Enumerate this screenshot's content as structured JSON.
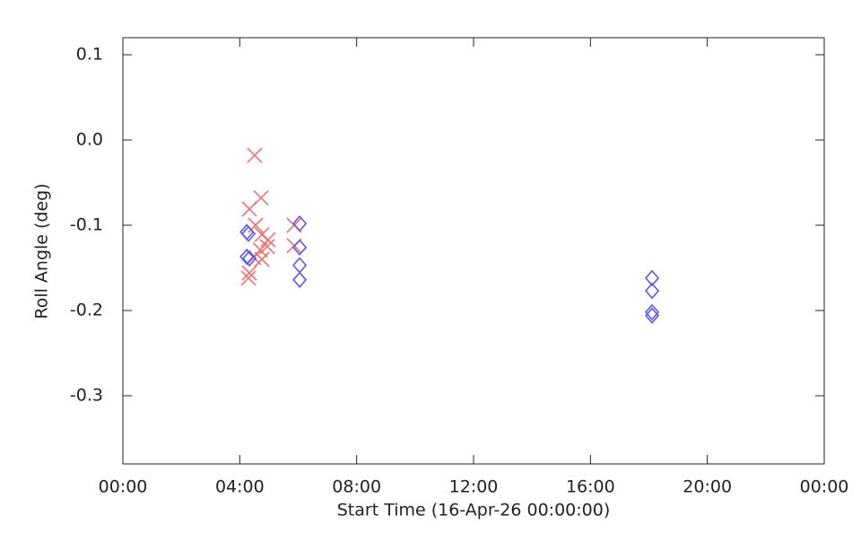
{
  "chart_data": {
    "type": "scatter",
    "xlabel": "Start Time (16-Apr-26 00:00:00)",
    "ylabel": "Roll Angle (deg)",
    "xlim": [
      0,
      24
    ],
    "xticks": [
      {
        "value": 0,
        "label": "00:00"
      },
      {
        "value": 4,
        "label": "04:00"
      },
      {
        "value": 8,
        "label": "08:00"
      },
      {
        "value": 12,
        "label": "12:00"
      },
      {
        "value": 16,
        "label": "16:00"
      },
      {
        "value": 20,
        "label": "20:00"
      },
      {
        "value": 24,
        "label": "00:00"
      }
    ],
    "ylim": [
      -0.38,
      0.12
    ],
    "yticks": [
      -0.3,
      -0.2,
      -0.1,
      {
        "value": 0,
        "label": "0.0"
      },
      0.1
    ],
    "series": [
      {
        "color": "#f07070",
        "marker": "x",
        "x": [
          4.51,
          4.73,
          4.33,
          4.54,
          4.76,
          4.97,
          4.94,
          4.7,
          4.48,
          4.76,
          4.33,
          4.3,
          5.86,
          5.86
        ],
        "values": [
          -0.018,
          -0.068,
          -0.081,
          -0.1,
          -0.111,
          -0.117,
          -0.125,
          -0.129,
          -0.138,
          -0.14,
          -0.156,
          -0.162,
          -0.1,
          -0.124
        ]
      },
      {
        "color": "#5a5ae6",
        "marker": "diamond",
        "x": [
          4.24,
          4.3,
          4.24,
          4.33,
          6.05,
          6.05,
          6.05,
          6.05,
          18.11,
          18.11,
          18.11,
          18.11
        ],
        "values": [
          -0.108,
          -0.11,
          -0.137,
          -0.139,
          -0.098,
          -0.126,
          -0.147,
          -0.164,
          -0.162,
          -0.177,
          -0.202,
          -0.206
        ]
      }
    ]
  }
}
